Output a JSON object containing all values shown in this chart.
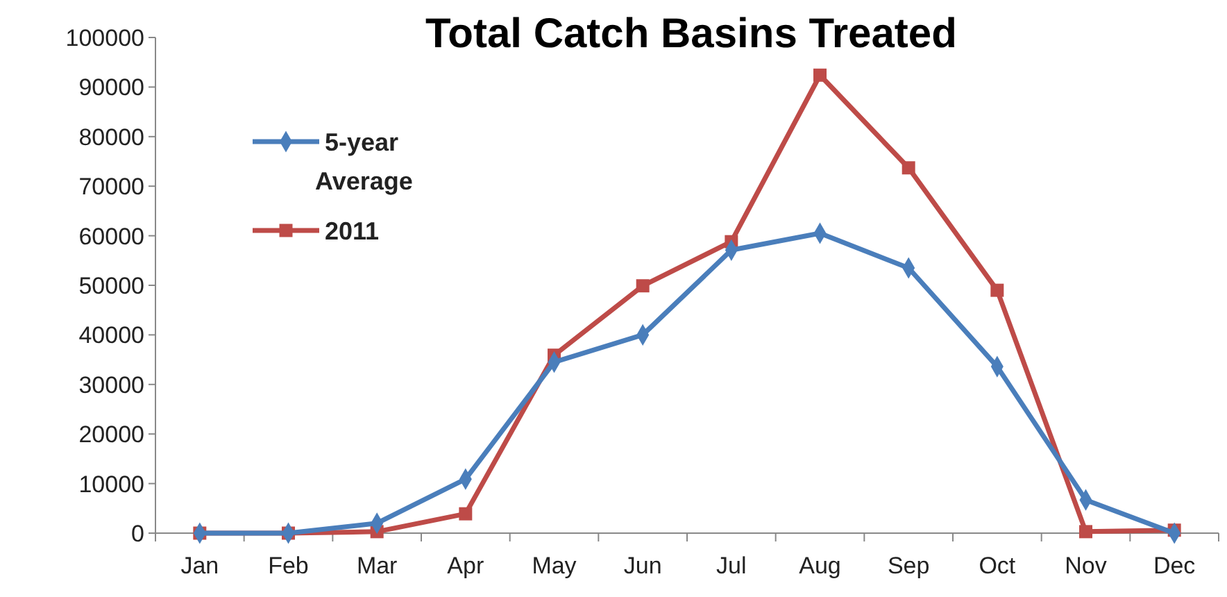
{
  "chart_data": {
    "type": "line",
    "title": "Total Catch Basins Treated",
    "categories": [
      "Jan",
      "Feb",
      "Mar",
      "Apr",
      "May",
      "Jun",
      "Jul",
      "Aug",
      "Sep",
      "Oct",
      "Nov",
      "Dec"
    ],
    "series": [
      {
        "name": "5-year Average",
        "color": "#4a7ebb",
        "marker": "diamond",
        "values": [
          0,
          0,
          2000,
          10900,
          34500,
          40000,
          57100,
          60500,
          53500,
          33600,
          6700,
          0
        ]
      },
      {
        "name": "2011",
        "color": "#be4b48",
        "marker": "square",
        "values": [
          0,
          0,
          300,
          3900,
          35900,
          49900,
          58800,
          92400,
          73700,
          49000,
          300,
          600
        ]
      }
    ],
    "ylim": [
      0,
      100000
    ],
    "yticks": [
      0,
      10000,
      20000,
      30000,
      40000,
      50000,
      60000,
      70000,
      80000,
      90000,
      100000
    ],
    "grid": false,
    "legend": "top left",
    "line_style": "solid"
  }
}
